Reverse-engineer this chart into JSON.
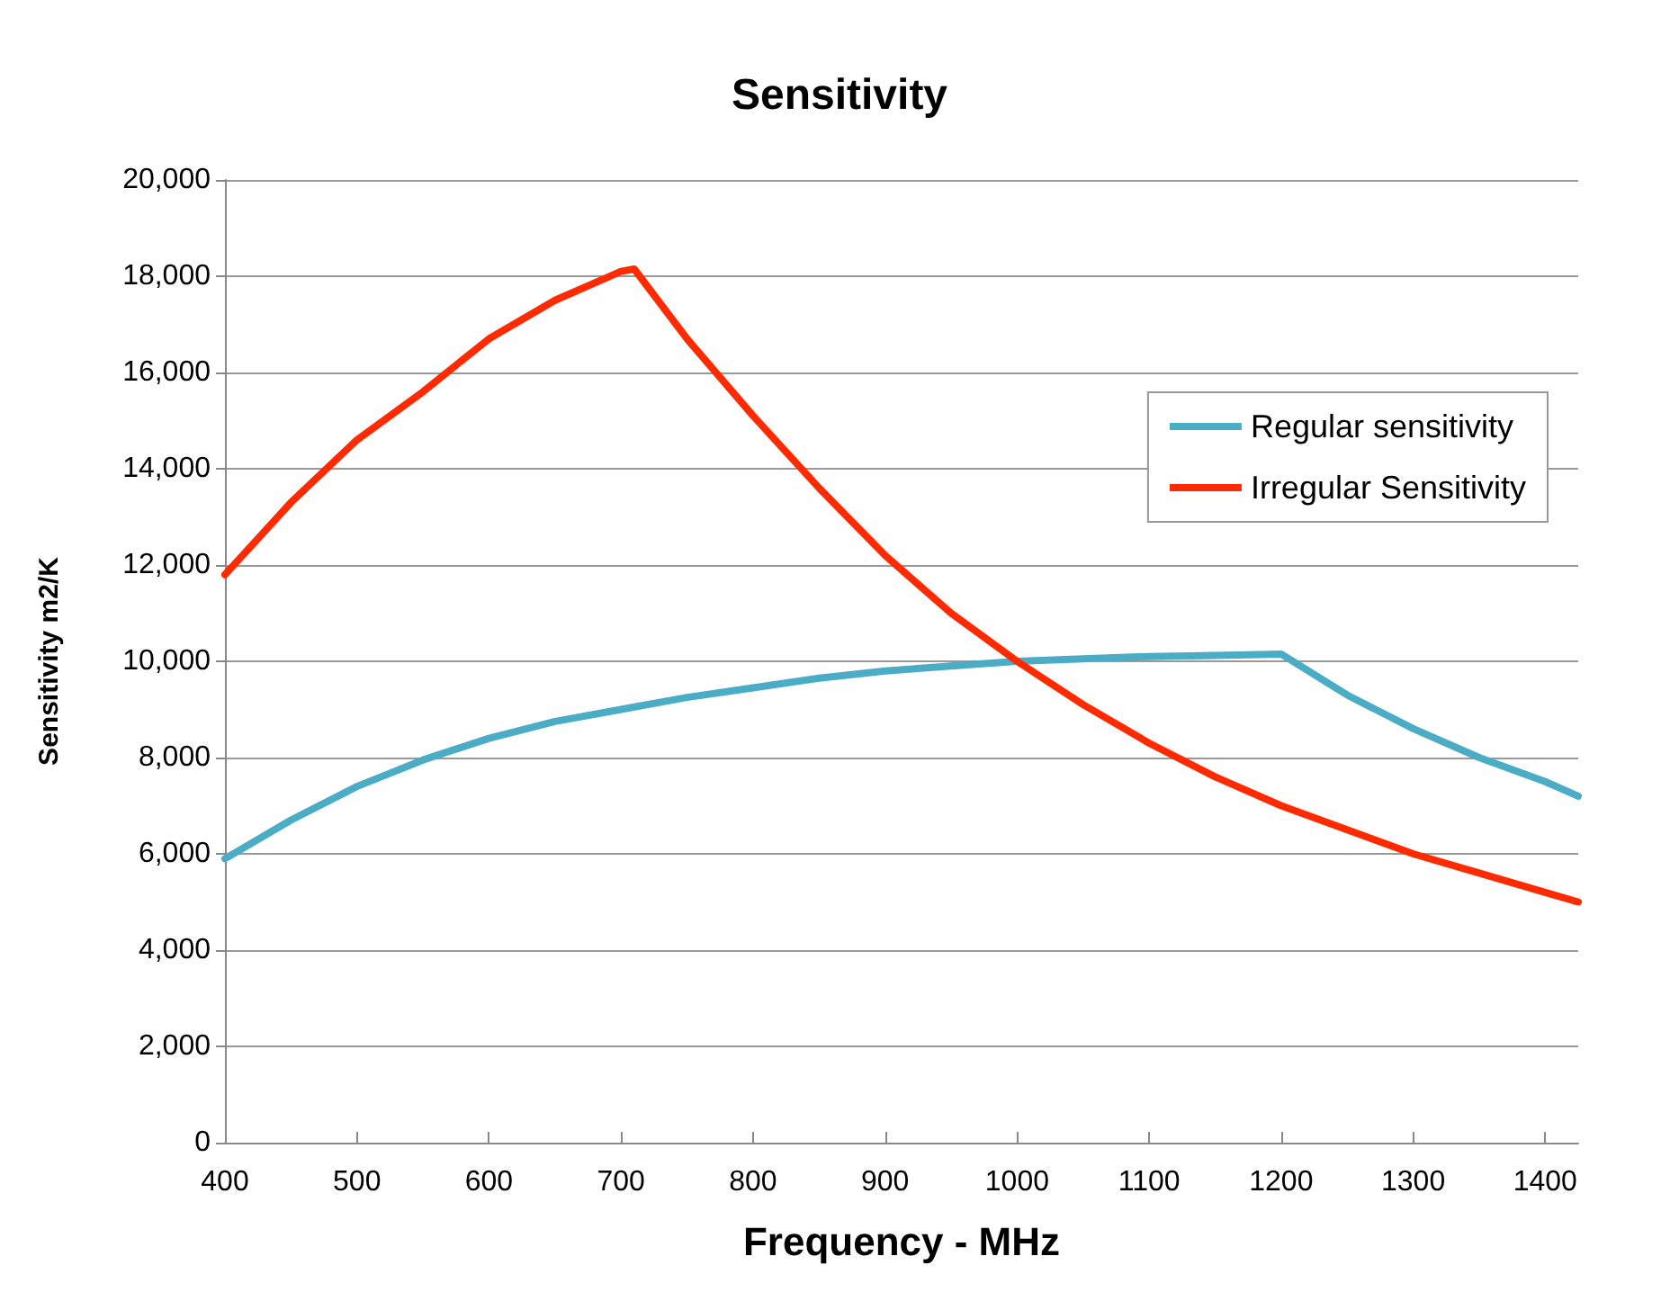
{
  "chart_data": {
    "type": "line",
    "title": "Sensitivity",
    "xlabel": "Frequency - MHz",
    "ylabel": "Sensitivity m2/K",
    "xlim": [
      400,
      1425
    ],
    "xticks": [
      400,
      500,
      600,
      700,
      800,
      900,
      1000,
      1100,
      1200,
      1300,
      1400
    ],
    "ylim": [
      0,
      20000
    ],
    "yticks": [
      {
        "value": 0,
        "label": "0"
      },
      {
        "value": 2000,
        "label": "2,000"
      },
      {
        "value": 4000,
        "label": "4,000"
      },
      {
        "value": 6000,
        "label": "6,000"
      },
      {
        "value": 8000,
        "label": "8,000"
      },
      {
        "value": 10000,
        "label": "10,000"
      },
      {
        "value": 12000,
        "label": "12,000"
      },
      {
        "value": 14000,
        "label": "14,000"
      },
      {
        "value": 16000,
        "label": "16,000"
      },
      {
        "value": 18000,
        "label": "18,000"
      },
      {
        "value": 20000,
        "label": "20,000"
      }
    ],
    "grid": "y",
    "legend": "top right",
    "marker": "none",
    "line_style": "solid",
    "series": [
      {
        "name": "Regular sensitivity",
        "color": "#4bacc6",
        "x": [
          400,
          450,
          500,
          550,
          600,
          650,
          700,
          750,
          800,
          850,
          900,
          950,
          1000,
          1050,
          1100,
          1150,
          1200,
          1250,
          1300,
          1350,
          1400,
          1425
        ],
        "values": [
          5900,
          6700,
          7400,
          7950,
          8400,
          8750,
          9000,
          9250,
          9450,
          9650,
          9800,
          9900,
          10000,
          10050,
          10100,
          10120,
          10150,
          9300,
          8600,
          8000,
          7500,
          7200
        ]
      },
      {
        "name": "Irregular Sensitivity",
        "color": "#ff2a00",
        "x": [
          400,
          450,
          500,
          550,
          600,
          650,
          700,
          710,
          750,
          800,
          850,
          900,
          950,
          1000,
          1050,
          1100,
          1150,
          1200,
          1250,
          1300,
          1350,
          1400,
          1425
        ],
        "values": [
          11800,
          13300,
          14600,
          15600,
          16700,
          17500,
          18100,
          18150,
          16700,
          15100,
          13600,
          12200,
          11000,
          10000,
          9100,
          8300,
          7600,
          7000,
          6500,
          6000,
          5600,
          5200,
          5000
        ]
      }
    ]
  }
}
